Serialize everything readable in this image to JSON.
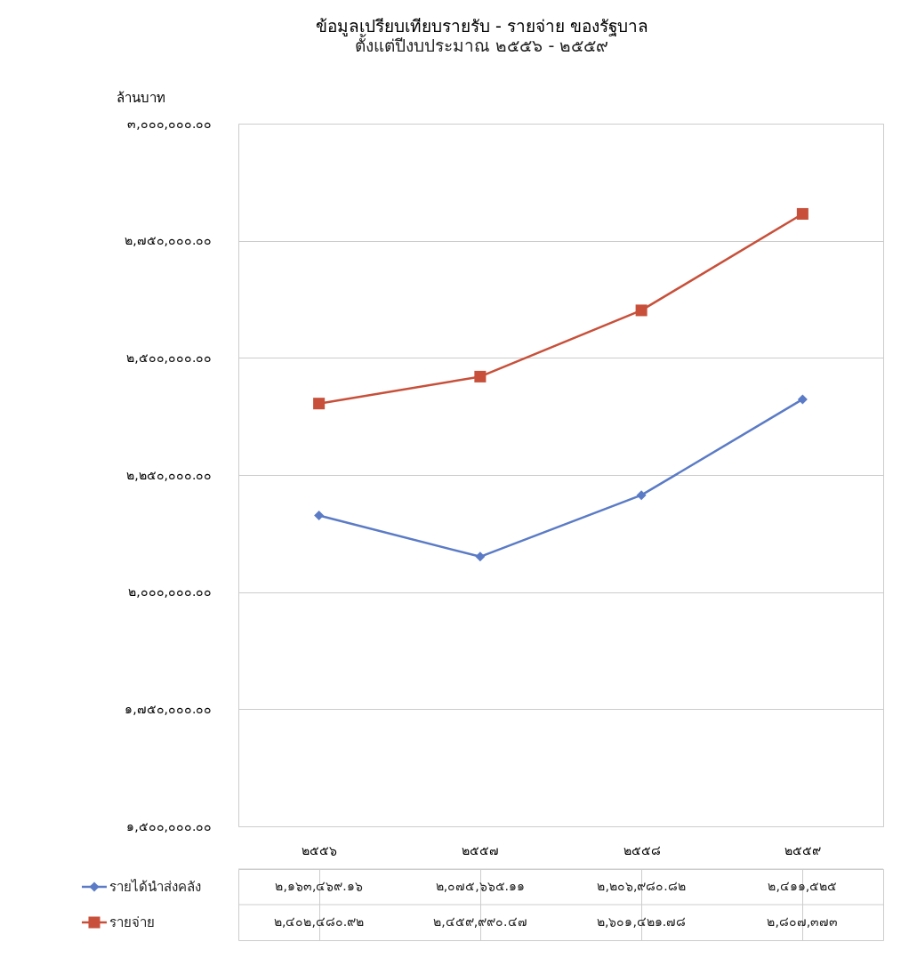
{
  "chart_data": {
    "type": "line",
    "title": "ข้อมูลเปรียบเทียบรายรับ - รายจ่าย ของรัฐบาล",
    "subtitle": "ตั้งแต่ปีงบประมาณ ๒๕๕๖ - ๒๕๕๙",
    "ylabel": "ล้านบาท",
    "categories": [
      "๒๕๕๖",
      "๒๕๕๗",
      "๒๕๕๘",
      "๒๕๕๙"
    ],
    "series": [
      {
        "name": "รายได้นำส่งคลัง",
        "color": "#5b7bc6",
        "marker": "diamond",
        "values": [
          2163469.16,
          2075665.11,
          2206980.82,
          2411525
        ],
        "value_labels": [
          "๒,๑๖๓,๔๖๙.๑๖",
          "๒,๐๗๕,๖๖๕.๑๑",
          "๒,๒๐๖,๙๘๐.๘๒",
          "๒,๔๑๑,๕๒๕"
        ]
      },
      {
        "name": "รายจ่าย",
        "color": "#c8503a",
        "marker": "square",
        "values": [
          2402480.92,
          2459990.47,
          2601421.78,
          2807373
        ],
        "value_labels": [
          "๒,๔๐๒,๔๘๐.๙๒",
          "๒,๔๕๙,๙๙๐.๔๗",
          "๒,๖๐๑,๔๒๑.๗๘",
          "๒,๘๐๗,๓๗๓"
        ]
      }
    ],
    "ylim": [
      1500000,
      3000000
    ],
    "yticks": [
      {
        "value": 1500000,
        "label": "๑,๕๐๐,๐๐๐.๐๐"
      },
      {
        "value": 1750000,
        "label": "๑,๗๕๐,๐๐๐.๐๐"
      },
      {
        "value": 2000000,
        "label": "๒,๐๐๐,๐๐๐.๐๐"
      },
      {
        "value": 2250000,
        "label": "๒,๒๕๐,๐๐๐.๐๐"
      },
      {
        "value": 2500000,
        "label": "๒,๕๐๐,๐๐๐.๐๐"
      },
      {
        "value": 2750000,
        "label": "๒,๗๕๐,๐๐๐.๐๐"
      },
      {
        "value": 3000000,
        "label": "๓,๐๐๐,๐๐๐.๐๐"
      }
    ],
    "grid": "y",
    "legend": "bottom",
    "line_style": "solid"
  }
}
